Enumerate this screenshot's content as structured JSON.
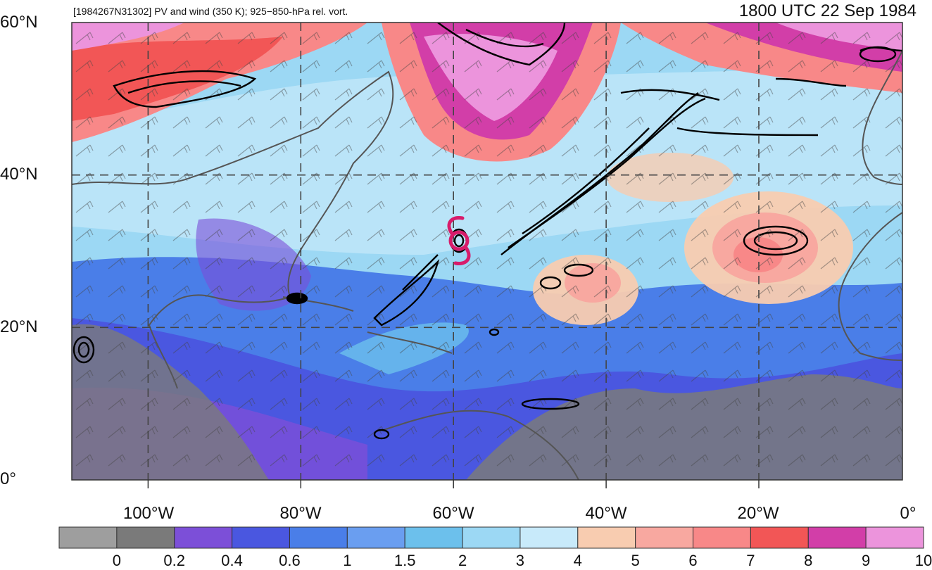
{
  "title_left": "[1984267N31302] PV and wind (350 K); 925−850-hPa rel. vort.",
  "title_right": "1800 UTC 22 Sep 1984",
  "lat_labels": [
    "60°N",
    "40°N",
    "20°N",
    "0°"
  ],
  "lon_labels": [
    "100°W",
    "80°W",
    "60°W",
    "40°W",
    "20°W",
    "0°"
  ],
  "colorbar": {
    "labels": [
      "0",
      "0.2",
      "0.4",
      "0.6",
      "1",
      "1.5",
      "2",
      "3",
      "4",
      "5",
      "6",
      "7",
      "8",
      "9",
      "10"
    ],
    "colors": [
      "#9e9e9e",
      "#7a7a7a",
      "#7c4fd8",
      "#4a57e0",
      "#4a7ee8",
      "#6a9ef0",
      "#6cc0ec",
      "#9cd8f4",
      "#c8eafa",
      "#f8ccb0",
      "#f8a8a0",
      "#f88888",
      "#f25656",
      "#d23ea8",
      "#ec94dc"
    ]
  },
  "map_colors": {
    "ocean_mid": "#9cd8f4",
    "ocean_south": "#4a7ee8",
    "trop_land": "#7a7a7a",
    "high_pv": "#f25656",
    "very_high_pv": "#d23ea8",
    "storm_symbol": "#d81b6a"
  },
  "storm_icon": "hurricane-symbol-icon"
}
